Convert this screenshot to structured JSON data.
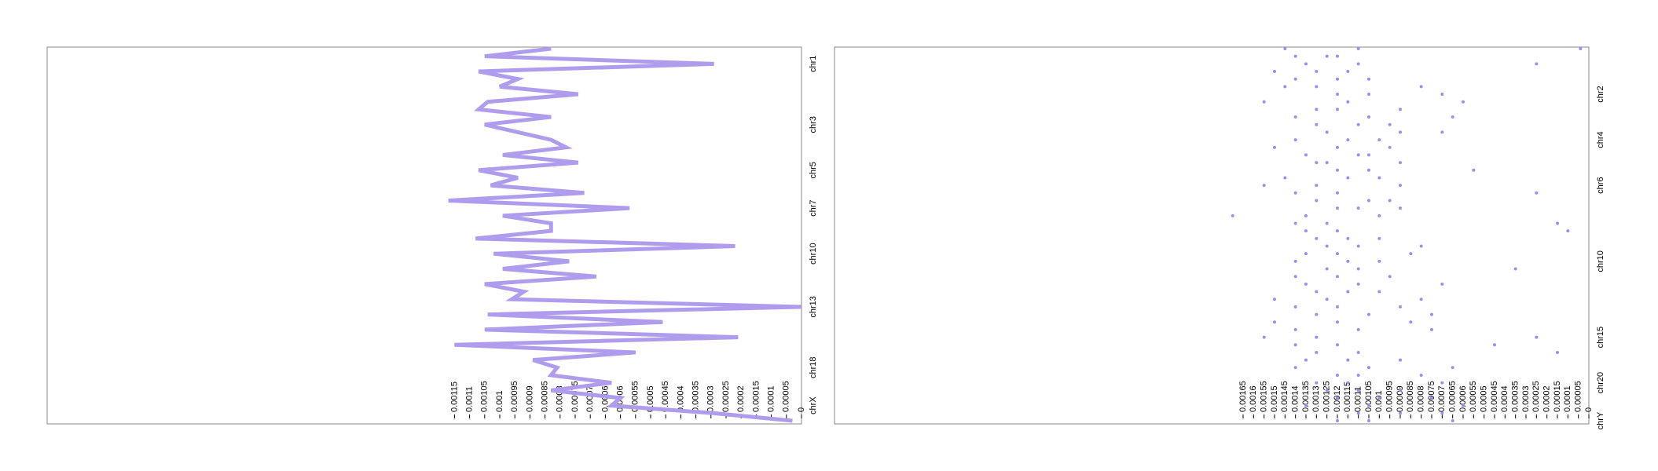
{
  "chart_data": [
    {
      "type": "line",
      "color": "#b09ced",
      "categories": [
        null,
        null,
        "chr1",
        null,
        null,
        null,
        null,
        null,
        null,
        null,
        "chr3",
        null,
        null,
        null,
        null,
        null,
        "chr5",
        null,
        null,
        null,
        null,
        "chr7",
        null,
        null,
        null,
        null,
        null,
        "chr10",
        null,
        null,
        null,
        null,
        null,
        null,
        "chr13",
        null,
        null,
        null,
        null,
        null,
        null,
        null,
        "chr18",
        null,
        null,
        null,
        null,
        "chrX",
        null,
        null
      ],
      "values": [
        0.00083,
        0.00105,
        0.00029,
        0.00107,
        0.00094,
        0.001,
        0.00074,
        0.00104,
        0.00107,
        0.00083,
        0.00105,
        0.00094,
        0.00083,
        0.00078,
        0.00099,
        0.00074,
        0.00107,
        0.00094,
        0.00103,
        0.00072,
        0.00117,
        0.00057,
        0.00099,
        0.00083,
        0.00083,
        0.00108,
        0.00022,
        0.00102,
        0.00077,
        0.00099,
        0.00068,
        0.00105,
        0.00092,
        0.00096,
        0,
        0.00104,
        0.00046,
        0.00105,
        0.00021,
        0.00115,
        0.00055,
        0.00089,
        0.00081,
        0.00083,
        0.00063,
        0.00083,
        0.0006,
        0.00063,
        0.00029,
        3e-05
      ],
      "xlim": [
        0.0025,
        0
      ],
      "xticks": [
        0,
        5e-05,
        0.0001,
        0.00015,
        0.0002,
        0.00025,
        0.0003,
        0.00035,
        0.0004,
        0.00045,
        0.0005,
        0.00055,
        0.0006,
        0.00065,
        0.0007,
        0.00075,
        0.0008,
        0.00085,
        0.0009,
        0.00095,
        0.001,
        0.00105,
        0.0011,
        0.00115
      ]
    },
    {
      "type": "scatter",
      "color": "#9d8fe9",
      "categories": [
        null,
        null,
        null,
        null,
        null,
        null,
        "chr2",
        null,
        null,
        null,
        null,
        null,
        "chr4",
        null,
        null,
        null,
        null,
        null,
        "chr6",
        null,
        null,
        null,
        null,
        null,
        null,
        null,
        null,
        null,
        "chr10",
        null,
        null,
        null,
        null,
        null,
        null,
        null,
        null,
        null,
        "chr15",
        null,
        null,
        null,
        null,
        null,
        "chr20",
        null,
        null,
        null,
        null,
        "chrY"
      ],
      "values": [
        [
          0.00145,
          0.0011,
          4e-05
        ],
        [
          0.0014,
          0.00125,
          0.0012
        ],
        [
          0.00135,
          0.0011,
          0.00025
        ],
        [
          0.0015,
          0.00115,
          0.0013
        ],
        [
          0.0014,
          0.0012,
          0.00105
        ],
        [
          0.00145,
          0.0013,
          0.0008
        ],
        [
          0.0012,
          0.00105,
          0.0007
        ],
        [
          0.00155,
          0.00115,
          0.0006
        ],
        [
          0.0013,
          0.0012,
          0.0009
        ],
        [
          0.0014,
          0.00105,
          0.00065
        ],
        [
          0.0013,
          0.0011,
          0.00095
        ],
        [
          0.00125,
          0.0009,
          0.0007
        ],
        [
          0.0014,
          0.00115,
          0.001
        ],
        [
          0.0015,
          0.0012,
          0.00095
        ],
        [
          0.00135,
          0.0011,
          0.00105
        ],
        [
          0.0013,
          0.00125,
          0.0009
        ],
        [
          0.0012,
          0.00105,
          0.00055
        ],
        [
          0.00145,
          0.00115,
          0.001
        ],
        [
          0.00155,
          0.0013,
          0.0009
        ],
        [
          0.0014,
          0.0012,
          0.00025
        ],
        [
          0.0013,
          0.00105,
          0.00095
        ],
        [
          0.0012,
          0.0011,
          0.0009
        ],
        [
          0.0017,
          0.00135,
          0.001
        ],
        [
          0.0014,
          0.00125,
          0.00015
        ],
        [
          0.00135,
          0.0012,
          0.0001
        ],
        [
          0.0013,
          0.00115,
          0.001
        ],
        [
          0.00125,
          0.0011,
          0.0008
        ],
        [
          0.00135,
          0.0012,
          0.00085
        ],
        [
          0.0014,
          0.00115,
          0.001
        ],
        [
          0.00125,
          0.0011,
          0.00035
        ],
        [
          0.0014,
          0.0012,
          0.00095
        ],
        [
          0.00135,
          0.0011,
          0.0007
        ],
        [
          0.0013,
          0.00115,
          0.001
        ],
        [
          0.0015,
          0.00125,
          0.0008
        ],
        [
          0.0014,
          0.0012,
          0.0009
        ],
        [
          0.0013,
          0.00105,
          0.00075
        ],
        [
          0.0015,
          0.0012,
          0.00085
        ],
        [
          0.0014,
          0.0011,
          0.00075
        ],
        [
          0.00155,
          0.0013,
          0.00025
        ],
        [
          0.0014,
          0.0012,
          0.00045
        ],
        [
          0.0013,
          0.0011,
          0.00015
        ],
        [
          0.00135,
          0.00115,
          0.0009
        ],
        [
          0.0014,
          0.00105,
          0.00065
        ],
        [
          0.0012,
          0.0011,
          0.0008
        ],
        [
          0.0013,
          0.00115,
          0.0007
        ],
        [
          0.00125,
          0.0011,
          0.0009
        ],
        [
          0.0012,
          0.001,
          0.00075
        ],
        [
          0.00135,
          0.00105,
          0.0006
        ],
        [
          0.0011,
          0.0009,
          0.0007
        ],
        [
          0.0012,
          0.00105,
          0.00065
        ]
      ],
      "xlim": [
        0.0036,
        0
      ],
      "xticks": [
        0,
        5e-05,
        0.0001,
        0.00015,
        0.0002,
        0.00025,
        0.0003,
        0.00035,
        0.0004,
        0.00045,
        0.0005,
        0.00055,
        0.0006,
        0.00065,
        0.0007,
        0.00075,
        0.0008,
        0.00085,
        0.0009,
        0.00095,
        0.001,
        0.00105,
        0.0011,
        0.00115,
        0.0012,
        0.00125,
        0.0013,
        0.00135,
        0.0014,
        0.00145,
        0.0015,
        0.00155,
        0.0016,
        0.00165
      ]
    }
  ]
}
